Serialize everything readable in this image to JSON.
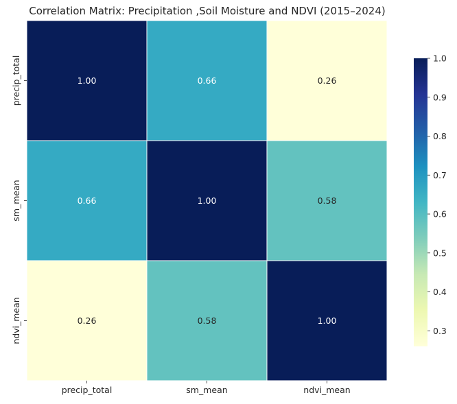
{
  "chart_data": {
    "type": "heatmap",
    "title": "Correlation Matrix:  Precipitation ,Soil Moisture and NDVI (2015–2024)",
    "x_labels": [
      "precip_total",
      "sm_mean",
      "ndvi_mean"
    ],
    "y_labels": [
      "precip_total",
      "sm_mean",
      "ndvi_mean"
    ],
    "values": [
      [
        1.0,
        0.66,
        0.26
      ],
      [
        0.66,
        1.0,
        0.58
      ],
      [
        0.26,
        0.58,
        1.0
      ]
    ],
    "value_format": "0.00",
    "colormap": "YlGnBu",
    "color_range": [
      0.26,
      1.0
    ],
    "colorbar": {
      "ticks": [
        0.3,
        0.4,
        0.5,
        0.6,
        0.7,
        0.8,
        0.9,
        1.0
      ],
      "tick_labels": [
        "0.3",
        "0.4",
        "0.5",
        "0.6",
        "0.7",
        "0.8",
        "0.9",
        "1.0"
      ],
      "placement": "right"
    },
    "grid": true,
    "gridline_color": "#ffffff"
  }
}
